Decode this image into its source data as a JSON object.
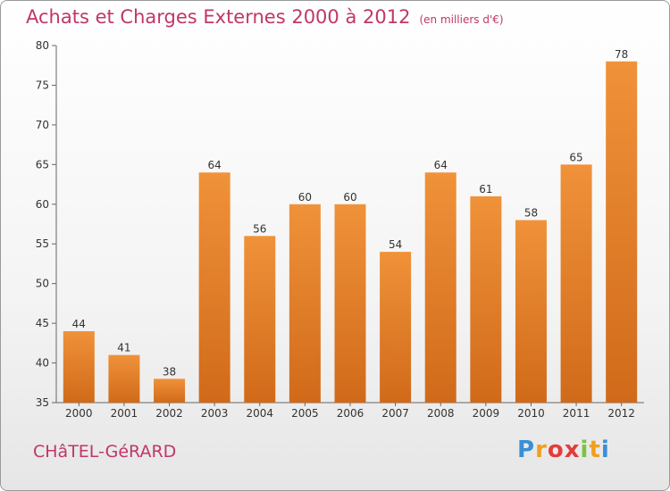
{
  "chart_data": {
    "type": "bar",
    "title": "Achats et Charges Externes 2000 à 2012",
    "subtitle": "(en milliers d'€)",
    "categories": [
      "2000",
      "2001",
      "2002",
      "2003",
      "2004",
      "2005",
      "2006",
      "2007",
      "2008",
      "2009",
      "2010",
      "2011",
      "2012"
    ],
    "values": [
      44,
      41,
      38,
      64,
      56,
      60,
      60,
      54,
      64,
      61,
      58,
      65,
      78
    ],
    "ylim": [
      35,
      80
    ],
    "yticks": [
      35,
      40,
      45,
      50,
      55,
      60,
      65,
      70,
      75,
      80
    ],
    "grid": false,
    "bar_color": "#f0923a",
    "bar_color_dark": "#d06a1a"
  },
  "commune": "CHâTEL-GéRARD",
  "brand": {
    "letters": [
      "P",
      "r",
      "o",
      "x",
      "i",
      "t",
      "i"
    ],
    "colors": [
      "#3a8fd6",
      "#f0a020",
      "#e33c3c",
      "#e33c3c",
      "#7cc242",
      "#f0a020",
      "#3a8fd6"
    ]
  }
}
